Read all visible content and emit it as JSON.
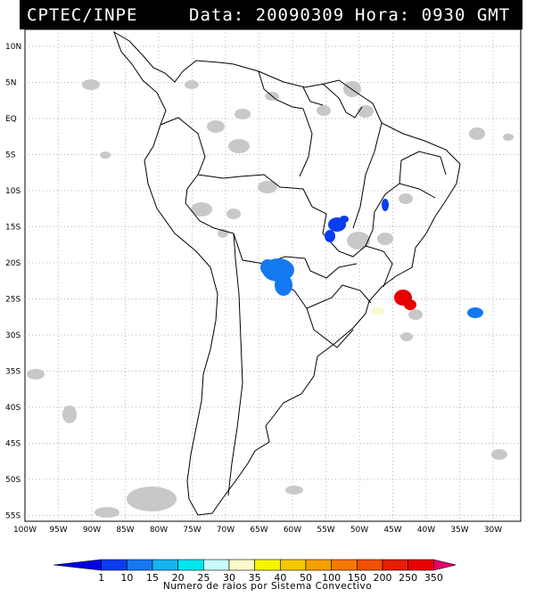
{
  "header": {
    "source": "CPTEC/INPE",
    "date_label": "Data: 20090309",
    "time_label": "Hora: 0930 GMT"
  },
  "map": {
    "lat_labels": [
      "10N",
      "5N",
      "EQ",
      "5S",
      "10S",
      "15S",
      "20S",
      "25S",
      "30S",
      "35S",
      "40S",
      "45S",
      "50S",
      "55S"
    ],
    "lon_labels": [
      "100W",
      "95W",
      "90W",
      "85W",
      "80W",
      "75W",
      "70W",
      "65W",
      "60W",
      "55W",
      "50W",
      "45W",
      "40W",
      "35W",
      "30W"
    ]
  },
  "legend": {
    "values": [
      "1",
      "10",
      "15",
      "20",
      "25",
      "30",
      "35",
      "40",
      "50",
      "100",
      "150",
      "200",
      "250",
      "350"
    ],
    "colors": [
      "#0000e6",
      "#0a3cf0",
      "#1478f0",
      "#14b4f0",
      "#00e6f0",
      "#c8fafa",
      "#fafac8",
      "#f5f500",
      "#f5c800",
      "#f5a000",
      "#f57800",
      "#f05000",
      "#e61e00",
      "#e60000",
      "#e6006e"
    ],
    "caption": "Numero de raios por Sistema Convectivo"
  }
}
